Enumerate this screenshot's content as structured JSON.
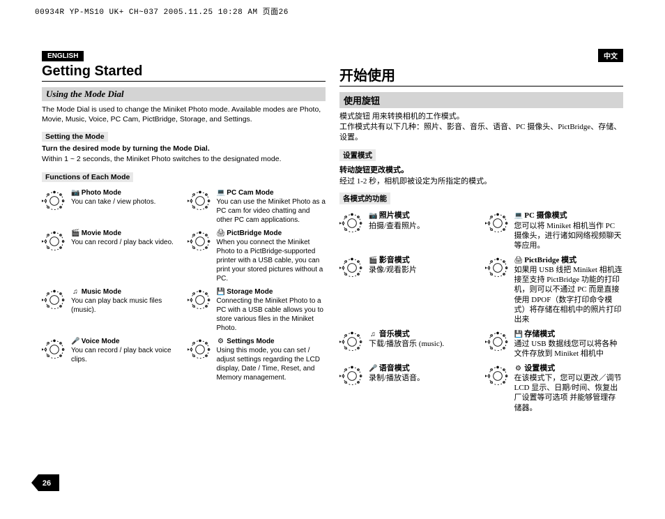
{
  "header_code": "00934R YP-MS10 UK+ CH~037 2005.11.25 10:28 AM 页面26",
  "page_number": "26",
  "en": {
    "lang": "ENGLISH",
    "title": "Getting Started",
    "section": "Using the Mode Dial",
    "intro": "The Mode Dial is used to change the Miniket Photo mode. Available modes are Photo, Movie, Music, Voice, PC Cam, PictBridge, Storage, and Settings.",
    "sub1": "Setting the Mode",
    "bold1": "Turn the desired mode by turning the Mode Dial.",
    "body1": "Within 1 ~ 2 seconds, the Miniket Photo switches to the designated mode.",
    "sub2": "Functions of Each Mode",
    "modes": [
      {
        "glyph": "📷",
        "name": "Photo Mode",
        "desc": "You can take / view photos."
      },
      {
        "glyph": "💻",
        "name": "PC Cam Mode",
        "desc": "You can use the Miniket Photo as a PC cam for video chatting and other PC cam applications."
      },
      {
        "glyph": "🎬",
        "name": "Movie Mode",
        "desc": "You can record / play back video."
      },
      {
        "glyph": "🖨",
        "name": "PictBridge Mode",
        "desc": "When you connect the Miniket Photo to a PictBridge-supported printer with a USB cable, you can print your stored pictures without a PC."
      },
      {
        "glyph": "♫",
        "name": "Music Mode",
        "desc": "You can play back music files (music)."
      },
      {
        "glyph": "💾",
        "name": "Storage Mode",
        "desc": "Connecting the Miniket Photo to a PC with a USB cable allows you to store various files in the Miniket Photo."
      },
      {
        "glyph": "🎤",
        "name": "Voice Mode",
        "desc": "You can record / play back voice clips."
      },
      {
        "glyph": "⚙",
        "name": "Settings Mode",
        "desc": "Using this mode, you can set / adjust settings regarding the LCD display, Date / Time, Reset, and Memory management."
      }
    ]
  },
  "cn": {
    "lang": "中文",
    "title": "开始使用",
    "section": "使用旋钮",
    "intro": "模式旋钮 用来转换相机的工作模式。\n工作模式共有以下几种：照片、影音、音乐、语音、PC 摄像头、PictBridge、存储、设置。",
    "sub1": "设置模式",
    "bold1": "转动旋钮更改模式。",
    "body1": "经过 1-2 秒，相机即被设定为所指定的模式。",
    "sub2": "各模式的功能",
    "modes": [
      {
        "glyph": "📷",
        "name": "照片模式",
        "desc": "拍摄/查看照片。"
      },
      {
        "glyph": "💻",
        "name": "PC 摄像模式",
        "desc": "您可以将 Miniket 相机当作 PC 摄像头，进行诸如网络视频聊天等应用。"
      },
      {
        "glyph": "🎬",
        "name": "影音模式",
        "desc": "录像/观看影片"
      },
      {
        "glyph": "🖨",
        "name": "PictBridge 模式",
        "desc": "如果用 USB 线把 Miniket 相机连接至支持 PictBridge 功能的打印机，则可以不通过 PC 而是直接使用 DPOF（数字打印命令模式）将存储在相机中的照片打印出来"
      },
      {
        "glyph": "♫",
        "name": "音乐模式",
        "desc": "下载/播放音乐 (music)."
      },
      {
        "glyph": "💾",
        "name": "存储模式",
        "desc": "通过 USB 数据线您可以将各种文件存放到 Miniket 相机中"
      },
      {
        "glyph": "🎤",
        "name": "语音模式",
        "desc": "录制/播放语音。"
      },
      {
        "glyph": "⚙",
        "name": "设置模式",
        "desc": "在该模式下，您可以更改／调节 LCD 显示、日期/时间、恢复出厂设置等可选项 并能够管理存储器。"
      }
    ]
  }
}
